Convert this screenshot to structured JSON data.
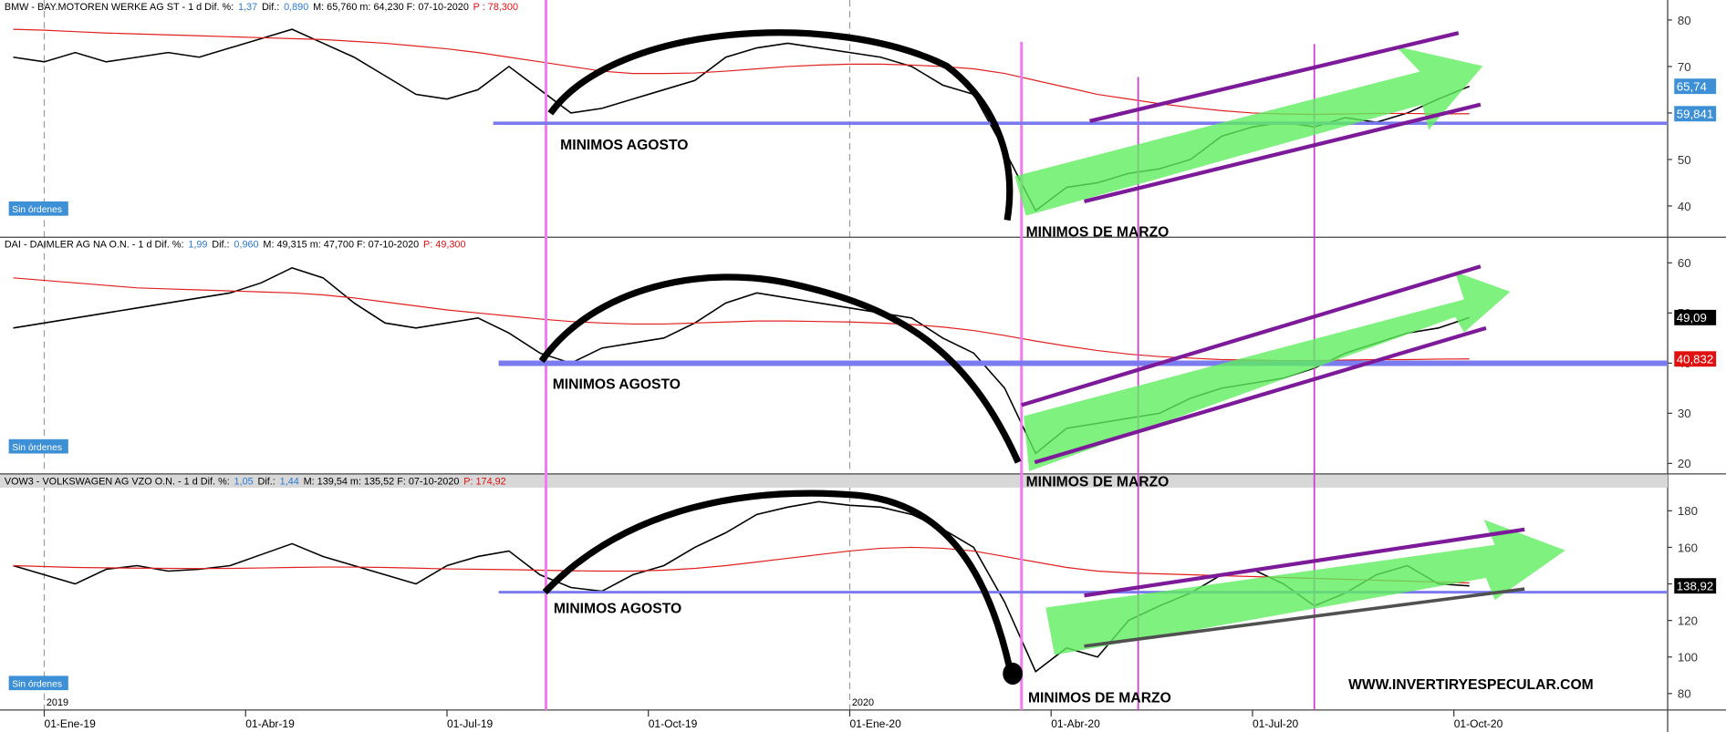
{
  "time_axis": {
    "xlim": [
      -2.5,
      104.8
    ],
    "x": [
      -2,
      0,
      2,
      4,
      6,
      8,
      10,
      12,
      14,
      16,
      18,
      20,
      22,
      24,
      26,
      28,
      30,
      32,
      34,
      36,
      38,
      40,
      42,
      44,
      46,
      48,
      50,
      52,
      54,
      56,
      58,
      60,
      62,
      64,
      66,
      68,
      70,
      72,
      74,
      76,
      78,
      80,
      82,
      84,
      86,
      88,
      90,
      92
    ],
    "xticks": [
      {
        "value": 0,
        "label": "01-Ene-19"
      },
      {
        "value": 13,
        "label": "01-Abr-19"
      },
      {
        "value": 26,
        "label": "01-Jul-19"
      },
      {
        "value": 39,
        "label": "01-Oct-19"
      },
      {
        "value": 52,
        "label": "01-Ene-20"
      },
      {
        "value": 65,
        "label": "01-Abr-20"
      },
      {
        "value": 78,
        "label": "01-Jul-20"
      },
      {
        "value": 91,
        "label": "01-Oct-20"
      }
    ],
    "year_marks": [
      {
        "value": 0,
        "label": "2019"
      },
      {
        "value": 52,
        "label": "2020"
      }
    ]
  },
  "watermark": "WWW.INVERTIRYESPECULAR.COM",
  "chart_data": [
    {
      "type": "line",
      "header": [
        {
          "text": "BMW - BAY.MOTOREN WERKE AG ST -  1 d Dif. %:",
          "color": "#000000"
        },
        {
          "text": "1,37",
          "color": "#2a7bd4"
        },
        {
          "text": "Dif.:",
          "color": "#000000"
        },
        {
          "text": "0,890",
          "color": "#2a7bd4"
        },
        {
          "text": "M: 65,760  m: 64,230  F: 07-10-2020",
          "color": "#000000"
        },
        {
          "text": "P : 78,300",
          "color": "#e01010"
        }
      ],
      "status": "Sin órdenes",
      "annotations": [
        "MINIMOS AGOSTO",
        "MINIMOS DE MARZO"
      ],
      "ylim": [
        33.4,
        84.3
      ],
      "yticks": [
        40,
        50,
        60,
        70,
        80
      ],
      "series": [
        {
          "color": "#000000",
          "values": [
            72,
            71,
            73,
            71,
            72,
            73,
            72,
            74,
            76,
            78,
            75,
            72,
            68,
            64,
            63,
            65,
            70,
            65,
            60,
            61,
            63,
            65,
            67,
            72,
            74,
            75,
            74,
            73,
            72,
            70,
            66,
            64,
            52,
            39,
            44,
            45,
            47,
            48,
            50,
            55,
            57,
            58,
            57,
            59,
            58,
            60,
            63,
            65.74
          ]
        },
        {
          "color": "#e02020",
          "values": [
            78,
            77.8,
            77.5,
            77.2,
            77,
            76.8,
            76.6,
            76.4,
            76.2,
            76,
            75.8,
            75.4,
            75,
            74.4,
            73.8,
            73,
            72,
            71,
            70,
            69,
            68.5,
            68.5,
            68.6,
            69,
            69.5,
            70,
            70.3,
            70.5,
            70.5,
            70.3,
            70,
            69.5,
            68.5,
            67,
            65.5,
            64,
            63,
            62,
            61.2,
            60.5,
            60,
            59.8,
            59.7,
            59.8,
            59.9,
            59.9,
            59.8,
            59.841
          ]
        }
      ],
      "price_labels": [
        {
          "value": 65.74,
          "label": "65,74",
          "color": "#3d8fd6"
        },
        {
          "value": 59.841,
          "label": "59,841",
          "color": "#3d8fd6"
        }
      ]
    },
    {
      "type": "line",
      "header": [
        {
          "text": "DAI - DAIMLER AG NA O.N. - 1 d Dif. %:",
          "color": "#000000"
        },
        {
          "text": "1,99",
          "color": "#2a7bd4"
        },
        {
          "text": "Dif.:",
          "color": "#000000"
        },
        {
          "text": "0,960",
          "color": "#2a7bd4"
        },
        {
          "text": "M: 49,315  m: 47,700  F: 07-10-2020",
          "color": "#000000"
        },
        {
          "text": "P: 49,300",
          "color": "#e01010"
        }
      ],
      "status": "Sin órdenes",
      "annotations": [
        "MINIMOS AGOSTO",
        "MINIMOS DE MARZO"
      ],
      "ylim": [
        17.8,
        65
      ],
      "yticks": [
        20,
        30,
        40,
        50,
        60
      ],
      "series": [
        {
          "color": "#000000",
          "values": [
            47,
            48,
            49,
            50,
            51,
            52,
            53,
            54,
            56,
            59,
            57,
            52,
            48,
            47,
            48,
            49,
            46,
            42,
            40,
            43,
            44,
            45,
            48,
            52,
            54,
            53,
            52,
            51,
            50,
            49,
            45,
            42,
            35,
            22,
            27,
            28,
            29,
            30,
            33,
            35,
            36,
            37,
            39,
            42,
            44,
            46,
            47,
            49.09
          ]
        },
        {
          "color": "#e02020",
          "values": [
            57,
            56.5,
            56,
            55.5,
            55,
            54.8,
            54.6,
            54.4,
            54.2,
            54,
            53.6,
            53,
            52.2,
            51.4,
            50.6,
            50,
            49.4,
            48.8,
            48.3,
            48,
            47.8,
            47.8,
            48,
            48.2,
            48.4,
            48.4,
            48.3,
            48.2,
            48,
            47.7,
            47.2,
            46.5,
            45.5,
            44.4,
            43.4,
            42.5,
            41.8,
            41.3,
            41,
            40.7,
            40.6,
            40.5,
            40.5,
            40.6,
            40.7,
            40.7,
            40.8,
            40.832
          ]
        }
      ],
      "price_labels": [
        {
          "value": 49.09,
          "label": "49,09",
          "color": "#000000"
        },
        {
          "value": 40.832,
          "label": "40,832",
          "color": "#e01010"
        }
      ]
    },
    {
      "type": "line",
      "header": [
        {
          "text": "VOW3 - VOLKSWAGEN AG VZO O.N. - 1 d Dif. %:",
          "color": "#000000"
        },
        {
          "text": "1,05",
          "color": "#2a7bd4"
        },
        {
          "text": "Dif.:",
          "color": "#000000"
        },
        {
          "text": "1,44",
          "color": "#2a7bd4"
        },
        {
          "text": "M: 139,54  m: 135,52  F: 07-10-2020",
          "color": "#000000"
        },
        {
          "text": "P: 174,92",
          "color": "#e01010"
        }
      ],
      "status": "Sin órdenes",
      "annotations": [
        "MINIMOS AGOSTO",
        "MINIMOS DE MARZO"
      ],
      "ylim": [
        70.4,
        199.9
      ],
      "yticks": [
        80,
        100,
        120,
        140,
        160,
        180
      ],
      "series": [
        {
          "color": "#000000",
          "values": [
            150,
            145,
            140,
            148,
            150,
            147,
            148,
            150,
            156,
            162,
            155,
            150,
            145,
            140,
            150,
            155,
            158,
            145,
            138,
            136,
            145,
            150,
            160,
            168,
            178,
            182,
            185,
            183,
            182,
            178,
            170,
            160,
            130,
            92,
            105,
            100,
            120,
            128,
            135,
            145,
            148,
            140,
            128,
            135,
            145,
            150,
            140,
            138.92
          ]
        },
        {
          "color": "#e02020",
          "values": [
            150,
            149.5,
            149,
            148.8,
            148.6,
            148.5,
            148.4,
            148.5,
            148.7,
            149,
            149.2,
            149.2,
            149,
            148.6,
            148.2,
            148,
            147.8,
            147.5,
            147.2,
            147,
            147,
            147.5,
            148.5,
            150,
            152,
            154,
            156,
            158,
            159.5,
            160,
            159.5,
            158,
            155,
            152,
            149,
            147,
            146,
            145.5,
            145,
            144.5,
            144,
            143.5,
            143,
            142.5,
            142,
            141.5,
            141,
            140.5
          ]
        }
      ],
      "price_labels": [
        {
          "value": 138.92,
          "label": "138,92",
          "color": "#000000"
        }
      ]
    }
  ]
}
